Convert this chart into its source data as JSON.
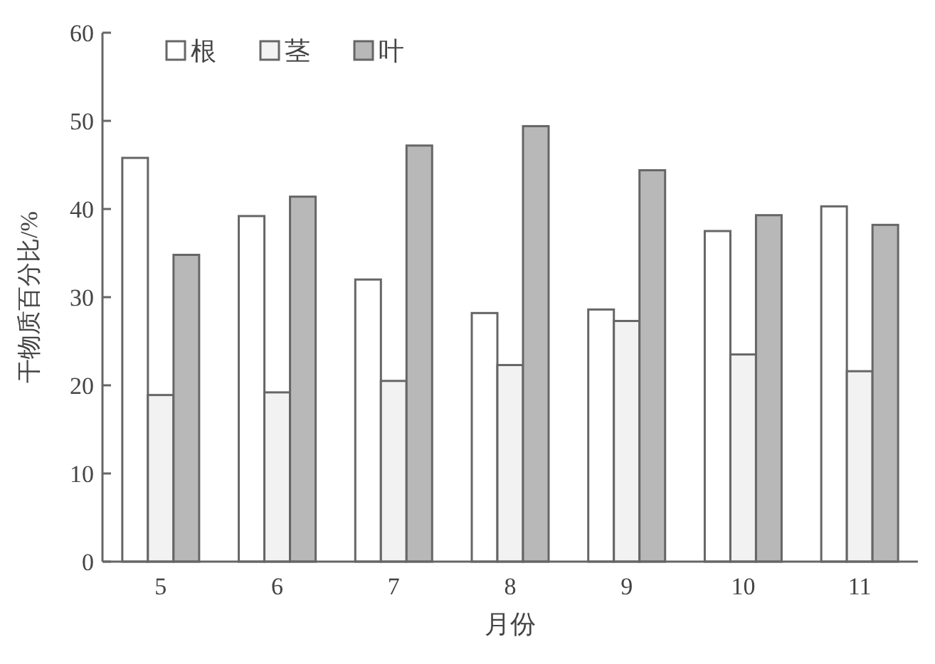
{
  "chart_data": {
    "type": "bar",
    "ylabel": "干物质百分比/%",
    "xlabel": "月份",
    "categories": [
      "5",
      "6",
      "7",
      "8",
      "9",
      "10",
      "11"
    ],
    "series": [
      {
        "name": "根",
        "color": "#ffffff",
        "values": [
          45.8,
          39.2,
          32.0,
          28.2,
          28.6,
          37.5,
          40.3
        ]
      },
      {
        "name": "茎",
        "color": "#f2f2f2",
        "values": [
          18.9,
          19.2,
          20.5,
          22.3,
          27.3,
          23.5,
          21.6
        ]
      },
      {
        "name": "叶",
        "color": "#b8b8b8",
        "values": [
          34.8,
          41.4,
          47.2,
          49.4,
          44.4,
          39.3,
          38.2
        ]
      }
    ],
    "ylim": [
      0,
      60
    ],
    "yticks": [
      0,
      10,
      20,
      30,
      40,
      50,
      60
    ],
    "grid": false,
    "legend": "top left"
  }
}
